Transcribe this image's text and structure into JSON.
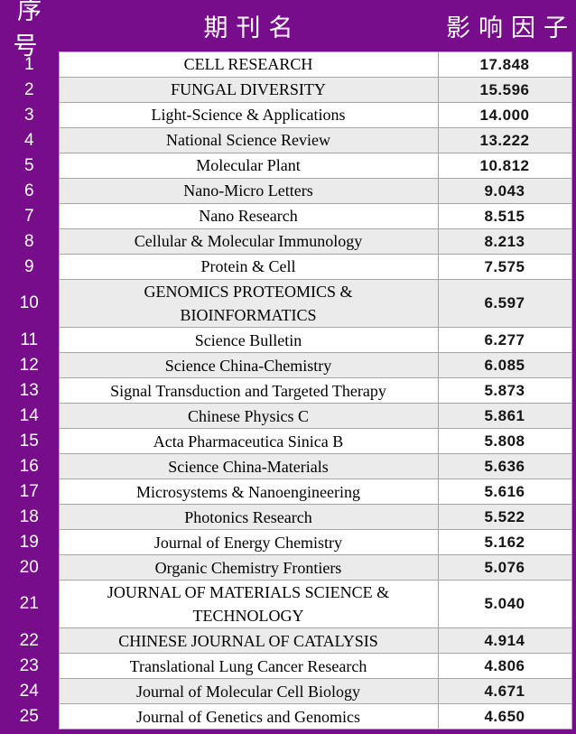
{
  "colors": {
    "frame_purple": "#780D8C",
    "row_white": "#FFFFFF",
    "row_gray": "#EBEBEB",
    "cell_border": "#A6A6A6",
    "header_text": "#FFFFFF"
  },
  "table": {
    "headers": [
      "序号",
      "期刊名",
      "影响因子"
    ]
  },
  "chart_data": {
    "type": "table",
    "title": "",
    "columns": [
      "序号",
      "期刊名",
      "影响因子"
    ],
    "rows": [
      [
        "1",
        "CELL RESEARCH",
        "17.848"
      ],
      [
        "2",
        "FUNGAL DIVERSITY",
        "15.596"
      ],
      [
        "3",
        "Light-Science & Applications",
        "14.000"
      ],
      [
        "4",
        "National Science Review",
        "13.222"
      ],
      [
        "5",
        "Molecular Plant",
        "10.812"
      ],
      [
        "6",
        "Nano-Micro Letters",
        "9.043"
      ],
      [
        "7",
        "Nano Research",
        "8.515"
      ],
      [
        "8",
        "Cellular & Molecular Immunology",
        "8.213"
      ],
      [
        "9",
        "Protein & Cell",
        "7.575"
      ],
      [
        "10",
        "GENOMICS PROTEOMICS &\nBIOINFORMATICS",
        "6.597"
      ],
      [
        "11",
        "Science Bulletin",
        "6.277"
      ],
      [
        "12",
        "Science China-Chemistry",
        "6.085"
      ],
      [
        "13",
        "Signal Transduction and Targeted Therapy",
        "5.873"
      ],
      [
        "14",
        "Chinese Physics C",
        "5.861"
      ],
      [
        "15",
        "Acta Pharmaceutica Sinica B",
        "5.808"
      ],
      [
        "16",
        "Science China-Materials",
        "5.636"
      ],
      [
        "17",
        "Microsystems & Nanoengineering",
        "5.616"
      ],
      [
        "18",
        "Photonics Research",
        "5.522"
      ],
      [
        "19",
        "Journal of Energy Chemistry",
        "5.162"
      ],
      [
        "20",
        "Organic Chemistry Frontiers",
        "5.076"
      ],
      [
        "21",
        "JOURNAL OF MATERIALS SCIENCE &\nTECHNOLOGY",
        "5.040"
      ],
      [
        "22",
        "CHINESE JOURNAL OF CATALYSIS",
        "4.914"
      ],
      [
        "23",
        "Translational Lung Cancer Research",
        "4.806"
      ],
      [
        "24",
        "Journal of Molecular Cell Biology",
        "4.671"
      ],
      [
        "25",
        "Journal of Genetics and Genomics",
        "4.650"
      ]
    ]
  }
}
